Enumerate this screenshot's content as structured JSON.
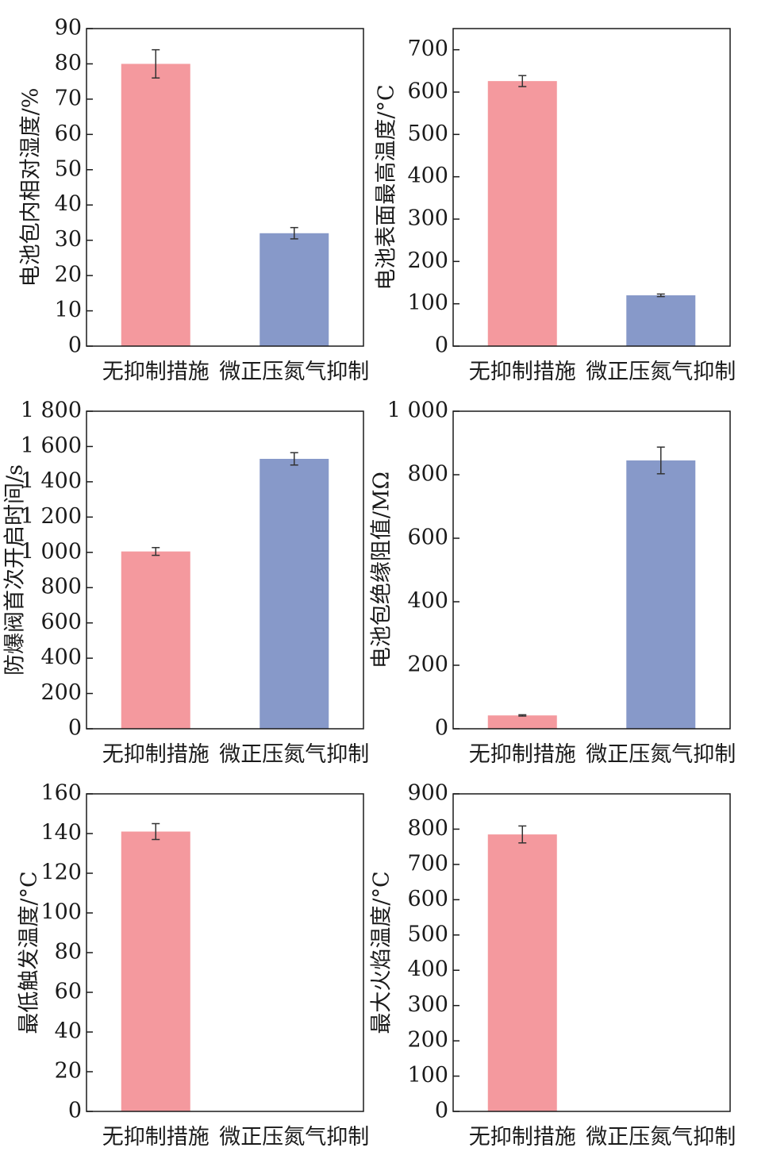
{
  "chart_data": [
    {
      "type": "bar",
      "categories": [
        "无抑制措施",
        "微正压氮气抑制"
      ],
      "values": [
        80,
        32
      ],
      "errors": [
        4,
        1.6
      ],
      "ylabel": "电池包内相对湿度/%",
      "ylim": [
        0,
        90
      ],
      "yticks": [
        0,
        10,
        20,
        30,
        40,
        50,
        60,
        70,
        80,
        90
      ],
      "ytick_labels": [
        "0",
        "10",
        "20",
        "30",
        "40",
        "50",
        "60",
        "70",
        "80",
        "90"
      ],
      "colors": [
        "#f4999e",
        "#8799c9"
      ]
    },
    {
      "type": "bar",
      "categories": [
        "无抑制措施",
        "微正压氮气抑制"
      ],
      "values": [
        626,
        120
      ],
      "errors": [
        13,
        3
      ],
      "ylabel": "电池表面最高温度/°C",
      "ylim": [
        0,
        750
      ],
      "yticks": [
        0,
        100,
        200,
        300,
        400,
        500,
        600,
        700
      ],
      "ytick_labels": [
        "0",
        "100",
        "200",
        "300",
        "400",
        "500",
        "600",
        "700"
      ],
      "colors": [
        "#f4999e",
        "#8799c9"
      ]
    },
    {
      "type": "bar",
      "categories": [
        "无抑制措施",
        "微正压氮气抑制"
      ],
      "values": [
        1005,
        1530
      ],
      "errors": [
        22,
        35
      ],
      "ylabel": "防爆阀首次开启时间/s",
      "ylim": [
        0,
        1800
      ],
      "yticks": [
        0,
        200,
        400,
        600,
        800,
        1000,
        1200,
        1400,
        1600,
        1800
      ],
      "ytick_labels": [
        "0",
        "200",
        "400",
        "600",
        "800",
        "1 000",
        "1 200",
        "1 400",
        "1 600",
        "1 800"
      ],
      "colors": [
        "#f4999e",
        "#8799c9"
      ]
    },
    {
      "type": "bar",
      "categories": [
        "无抑制措施",
        "微正压氮气抑制"
      ],
      "values": [
        42,
        845
      ],
      "errors": [
        2,
        42
      ],
      "ylabel": "电池包绝缘阻值/MΩ",
      "ylim": [
        0,
        1000
      ],
      "yticks": [
        0,
        200,
        400,
        600,
        800,
        1000
      ],
      "ytick_labels": [
        "0",
        "200",
        "400",
        "600",
        "800",
        "1 000"
      ],
      "colors": [
        "#f4999e",
        "#8799c9"
      ]
    },
    {
      "type": "bar",
      "categories": [
        "无抑制措施",
        "微正压氮气抑制"
      ],
      "values": [
        141,
        null
      ],
      "errors": [
        4,
        null
      ],
      "ylabel": "最低触发温度/°C",
      "ylim": [
        0,
        160
      ],
      "yticks": [
        0,
        20,
        40,
        60,
        80,
        100,
        120,
        140,
        160
      ],
      "ytick_labels": [
        "0",
        "20",
        "40",
        "60",
        "80",
        "100",
        "120",
        "140",
        "160"
      ],
      "colors": [
        "#f4999e",
        "#8799c9"
      ]
    },
    {
      "type": "bar",
      "categories": [
        "无抑制措施",
        "微正压氮气抑制"
      ],
      "values": [
        785,
        null
      ],
      "errors": [
        24,
        null
      ],
      "ylabel": "最大火焰温度/°C",
      "ylim": [
        0,
        900
      ],
      "yticks": [
        0,
        100,
        200,
        300,
        400,
        500,
        600,
        700,
        800,
        900
      ],
      "ytick_labels": [
        "0",
        "100",
        "200",
        "300",
        "400",
        "500",
        "600",
        "700",
        "800",
        "900"
      ],
      "colors": [
        "#f4999e",
        "#8799c9"
      ]
    }
  ]
}
